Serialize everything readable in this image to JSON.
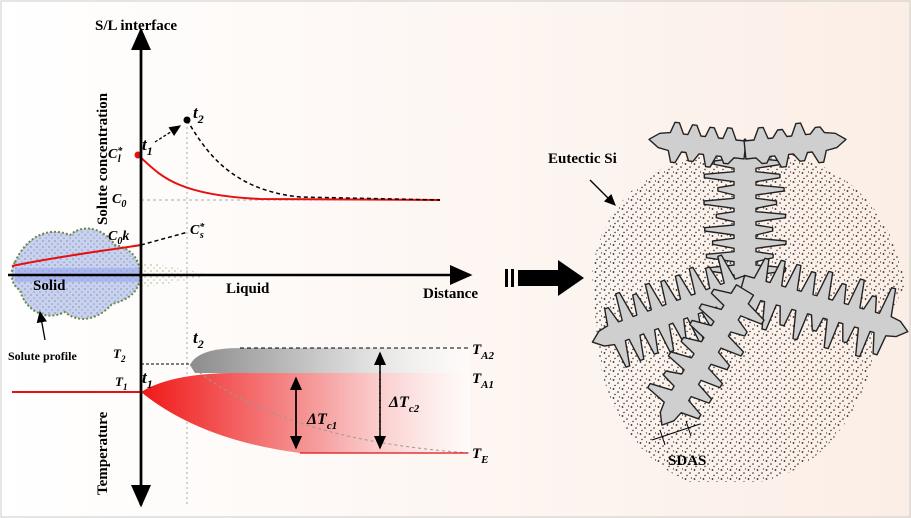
{
  "left_panel": {
    "interface_label": "S/L interface",
    "y_axis_top": "Solute concentration",
    "y_axis_bottom": "Temperature",
    "x_axis": "Distance",
    "solid": "Solid",
    "liquid": "Liquid",
    "solute_profile": "Solute profile"
  },
  "labels": {
    "cl_star": {
      "base": "C",
      "sub": "l",
      "sup": "*"
    },
    "t1_top": {
      "base": "t",
      "sub": "1"
    },
    "t2_top": {
      "base": "t",
      "sub": "2"
    },
    "c0": {
      "base": "C",
      "sub": "0"
    },
    "c0k": {
      "base": "C",
      "sub": "0",
      "tail": "k"
    },
    "cs_star": {
      "base": "C",
      "sub": "s",
      "sup": "*"
    },
    "T2": {
      "base": "T",
      "sub": "2"
    },
    "T1": {
      "base": "T",
      "sub": "1"
    },
    "t2_bottom": {
      "base": "t",
      "sub": "2"
    },
    "t1_bottom": {
      "base": "t",
      "sub": "1"
    },
    "TA2": {
      "base": "T",
      "sub": "A2"
    },
    "TA1": {
      "base": "T",
      "sub": "A1"
    },
    "dTc1": {
      "base": "ΔT",
      "sub": "c1"
    },
    "dTc2": {
      "base": "ΔT",
      "sub": "c2"
    },
    "TE": {
      "base": "T",
      "sub": "E"
    }
  },
  "right_panel": {
    "eutectic_label": "Eutectic Si",
    "sdas_label": "SDAS"
  }
}
